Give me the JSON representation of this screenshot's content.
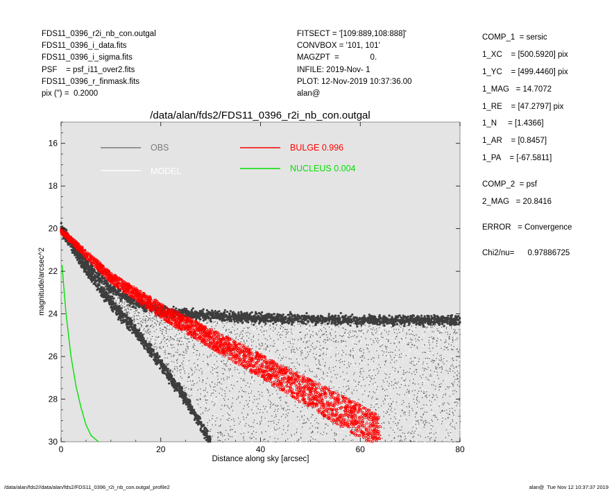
{
  "header": {
    "left_lines": [
      "FDS11_0396_r2i_nb_con.outgal",
      "FDS11_0396_i_data.fits",
      "FDS11_0396_i_sigma.fits",
      "PSF    = psf_i11_over2.fits",
      "FDS11_0396_r_finmask.fits",
      "pix (\") =  0.2000"
    ],
    "mid_lines": [
      "FITSECT = '[109:889,108:888]'",
      "CONVBOX = '101, 101'",
      "MAGZPT  =              0.",
      "INFILE: 2019-Nov- 1",
      "PLOT: 12-Nov-2019 10:37:36.00",
      "alan@"
    ]
  },
  "params": [
    "COMP_1  = sersic",
    "1_XC    = [500.5920] pix",
    "1_YC    = [499.4460] pix",
    "1_MAG   = 14.7072",
    "1_RE    = [47.2797] pix",
    "1_N     = [1.4366]",
    "1_AR    = [0.8457]",
    "1_PA    = [-67.5811]",
    "COMP_2  = psf",
    "2_MAG   = 20.8416",
    "ERROR   = Convergence",
    "Chi2/nu=      0.97886725"
  ],
  "chart_data": {
    "type": "scatter",
    "title": "/data/alan/fds2/FDS11_0396_r2i_nb_con.outgal",
    "xlabel": "Distance along sky [arcsec]",
    "ylabel": "magnitude/arcsec^2",
    "xlim": [
      0,
      80
    ],
    "ylim": [
      30,
      15
    ],
    "y_inverted": true,
    "x_ticks": [
      0,
      20,
      40,
      60,
      80
    ],
    "y_ticks": [
      16,
      18,
      20,
      22,
      24,
      26,
      28,
      30
    ],
    "background_color": "#e4e4e4",
    "grid": false,
    "legend_position": "top",
    "legend": [
      {
        "label": "OBS",
        "color": "#7a7a7a"
      },
      {
        "label": "MODEL",
        "color": "#ffffff"
      },
      {
        "label": "BULGE  0.996",
        "color": "#ff0000"
      },
      {
        "label": "NUCLEUS  0.004",
        "color": "#00e000"
      }
    ],
    "series": [
      {
        "name": "OBS",
        "color": "#444444",
        "description_points": [
          [
            0,
            20.0
          ],
          [
            5,
            21.6
          ],
          [
            10,
            22.8
          ],
          [
            15,
            23.5
          ],
          [
            20,
            23.85
          ],
          [
            30,
            24.1
          ],
          [
            40,
            24.2
          ],
          [
            60,
            24.3
          ],
          [
            80,
            24.3
          ]
        ]
      },
      {
        "name": "OBS",
        "color": "#444444",
        "description_points": [
          [
            0,
            20.0
          ],
          [
            5,
            21.9
          ],
          [
            10,
            23.5
          ],
          [
            15,
            24.8
          ],
          [
            20,
            26.4
          ],
          [
            25,
            28.0
          ],
          [
            30,
            30.0
          ]
        ]
      },
      {
        "name": "BULGE  0.996",
        "color": "#ff0000",
        "description_points": [
          [
            0,
            20.1
          ],
          [
            10,
            22.3
          ],
          [
            20,
            23.85
          ],
          [
            30,
            25.15
          ],
          [
            40,
            26.45
          ],
          [
            50,
            27.75
          ],
          [
            60,
            29.05
          ],
          [
            64,
            29.55
          ]
        ]
      },
      {
        "name": "NUCLEUS  0.004",
        "color": "#00e000",
        "description_points": [
          [
            0.2,
            21.7
          ],
          [
            0.5,
            22.6
          ],
          [
            1,
            24.0
          ],
          [
            2,
            26.0
          ],
          [
            3,
            27.4
          ],
          [
            4,
            28.4
          ],
          [
            5,
            29.2
          ],
          [
            6,
            29.7
          ],
          [
            7.5,
            30.0
          ]
        ]
      }
    ]
  },
  "footer": {
    "left": "/data/alan/fds2//data/alan/fds2/FDS11_0396_r2i_nb_con.outgal_profile2",
    "right": "alan@  Tue Nov 12 10:37:37 2019"
  }
}
